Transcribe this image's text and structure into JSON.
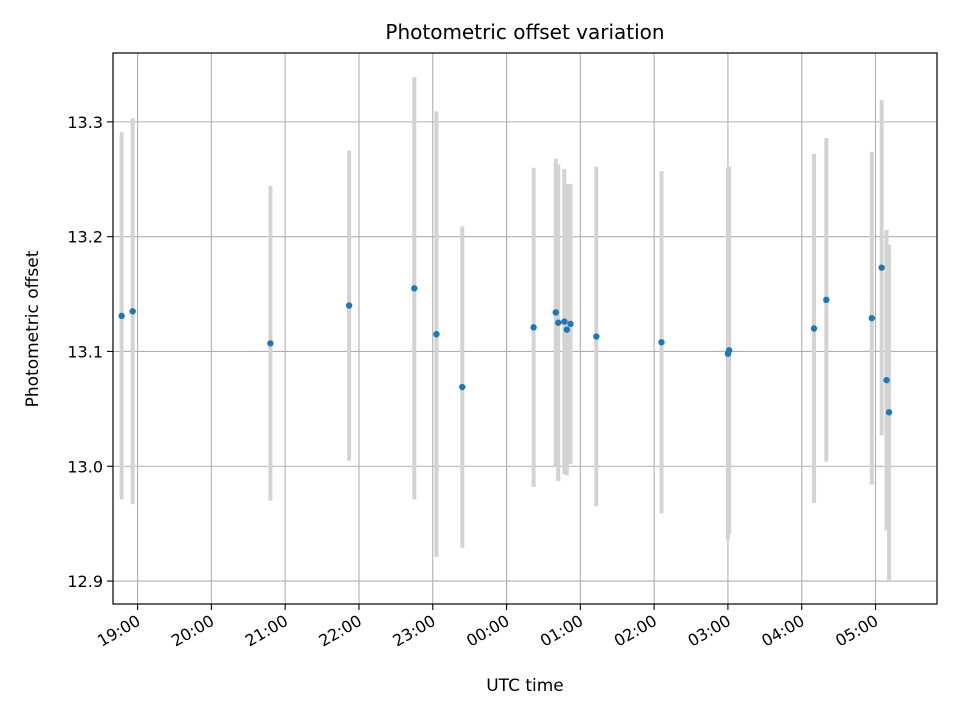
{
  "chart_data": {
    "type": "scatter",
    "title": "Photometric offset variation",
    "xlabel": "UTC time",
    "ylabel": "Photometric offset",
    "xlim": [
      "18:40",
      "05:50"
    ],
    "ylim": [
      12.88,
      13.36
    ],
    "x_ticks": [
      "19:00",
      "20:00",
      "21:00",
      "22:00",
      "23:00",
      "00:00",
      "01:00",
      "02:00",
      "03:00",
      "04:00",
      "05:00"
    ],
    "y_ticks": [
      "12.9",
      "13.0",
      "13.1",
      "13.2",
      "13.3"
    ],
    "grid": true,
    "legend": "none",
    "point_color": "#1f77b4",
    "errorbar_color": "#d3d3d3",
    "points": [
      {
        "x": "18:47",
        "y": 13.131,
        "err": 0.16
      },
      {
        "x": "18:56",
        "y": 13.135,
        "err": 0.168
      },
      {
        "x": "20:48",
        "y": 13.107,
        "err": 0.137
      },
      {
        "x": "21:52",
        "y": 13.14,
        "err": 0.135
      },
      {
        "x": "22:45",
        "y": 13.155,
        "err": 0.184
      },
      {
        "x": "23:03",
        "y": 13.115,
        "err": 0.194
      },
      {
        "x": "23:24",
        "y": 13.069,
        "err": 0.14
      },
      {
        "x": "00:22",
        "y": 13.121,
        "err": 0.139
      },
      {
        "x": "00:40",
        "y": 13.134,
        "err": 0.134
      },
      {
        "x": "00:42",
        "y": 13.125,
        "err": 0.138
      },
      {
        "x": "00:47",
        "y": 13.126,
        "err": 0.133
      },
      {
        "x": "00:49",
        "y": 13.119,
        "err": 0.127
      },
      {
        "x": "00:52",
        "y": 13.124,
        "err": 0.122
      },
      {
        "x": "01:13",
        "y": 13.113,
        "err": 0.148
      },
      {
        "x": "02:06",
        "y": 13.108,
        "err": 0.149
      },
      {
        "x": "03:00",
        "y": 13.098,
        "err": 0.162
      },
      {
        "x": "03:01",
        "y": 13.101,
        "err": 0.16
      },
      {
        "x": "04:10",
        "y": 13.12,
        "err": 0.152
      },
      {
        "x": "04:20",
        "y": 13.145,
        "err": 0.141
      },
      {
        "x": "04:57",
        "y": 13.129,
        "err": 0.145
      },
      {
        "x": "05:05",
        "y": 13.173,
        "err": 0.146
      },
      {
        "x": "05:09",
        "y": 13.075,
        "err": 0.131
      },
      {
        "x": "05:11",
        "y": 13.047,
        "err": 0.146
      }
    ]
  }
}
